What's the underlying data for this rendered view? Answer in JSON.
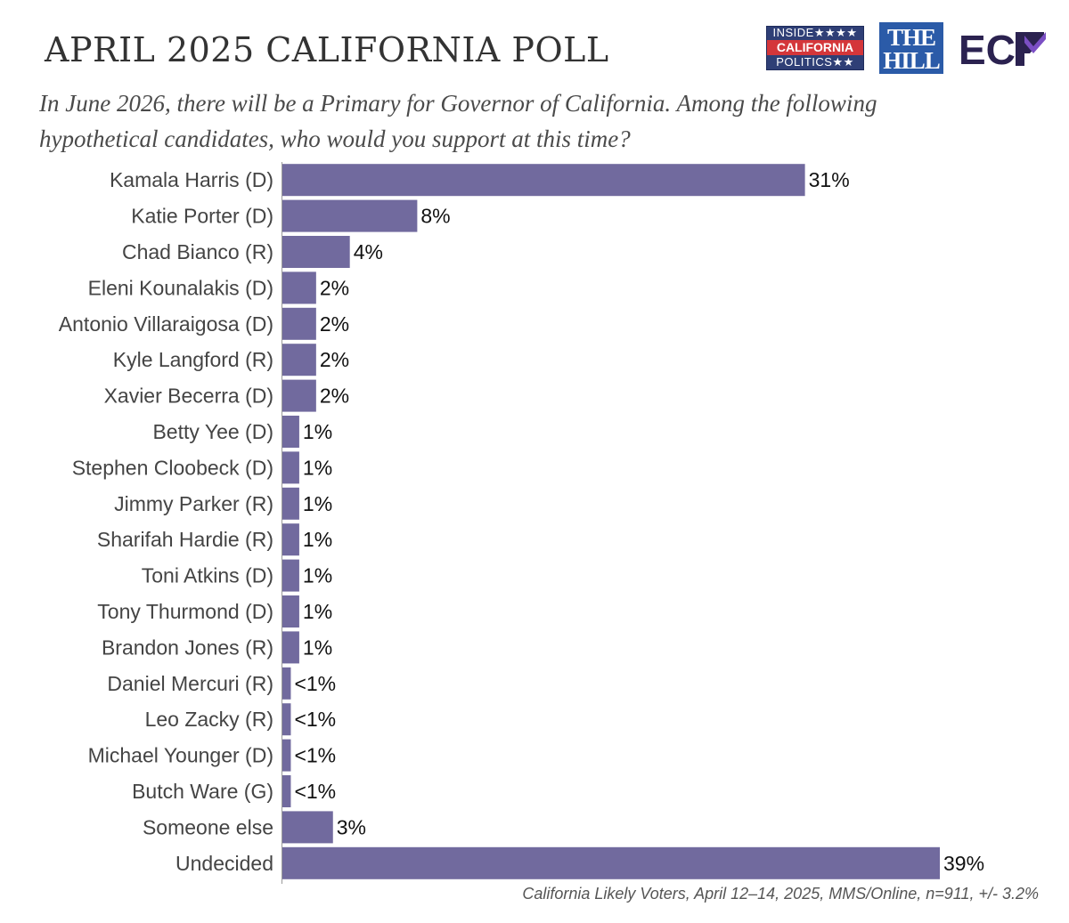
{
  "header": {
    "title": "APRIL 2025 CALIFORNIA POLL",
    "subtitle": "In June 2026, there will be a Primary for Governor of California. Among the following hypothetical candidates, who would you support at this time?"
  },
  "logos": {
    "icp_line1": "INSIDE★★★★",
    "icp_line2": "CALIFORNIA",
    "icp_line3": "POLITICS★★",
    "hill_line1": "THE",
    "hill_line2": "HILL",
    "ecp_text": "EC",
    "colors": {
      "icp_blue": "#2f3f76",
      "icp_red": "#d4363a",
      "hill_blue": "#2b5ba8",
      "ecp_navy": "#2b2250",
      "ecp_purple": "#7b4fc4"
    }
  },
  "chart_data": {
    "type": "bar",
    "orientation": "horizontal",
    "categories": [
      "Kamala Harris (D)",
      "Katie Porter (D)",
      "Chad Bianco (R)",
      "Eleni Kounalakis (D)",
      "Antonio Villaraigosa (D)",
      "Kyle Langford (R)",
      "Xavier Becerra (D)",
      "Betty Yee (D)",
      "Stephen Cloobeck (D)",
      "Jimmy Parker (R)",
      "Sharifah Hardie (R)",
      "Toni Atkins (D)",
      "Tony Thurmond (D)",
      "Brandon Jones (R)",
      "Daniel Mercuri (R)",
      "Leo Zacky (R)",
      "Michael Younger (D)",
      "Butch Ware (G)",
      "Someone else",
      "Undecided"
    ],
    "values": [
      31,
      8,
      4,
      2,
      2,
      2,
      2,
      1,
      1,
      1,
      1,
      1,
      1,
      1,
      0.5,
      0.5,
      0.5,
      0.5,
      3,
      39
    ],
    "value_labels": [
      "31%",
      "8%",
      "4%",
      "2%",
      "2%",
      "2%",
      "2%",
      "1%",
      "1%",
      "1%",
      "1%",
      "1%",
      "1%",
      "1%",
      "<1%",
      "<1%",
      "<1%",
      "<1%",
      "3%",
      "39%"
    ],
    "bar_color": "#716a9e",
    "xlim": [
      0,
      39
    ],
    "grid": false,
    "legend": "none"
  },
  "footer": {
    "source": "California Likely Voters, April 12–14, 2025, MMS/Online, n=911, +/- 3.2%"
  }
}
